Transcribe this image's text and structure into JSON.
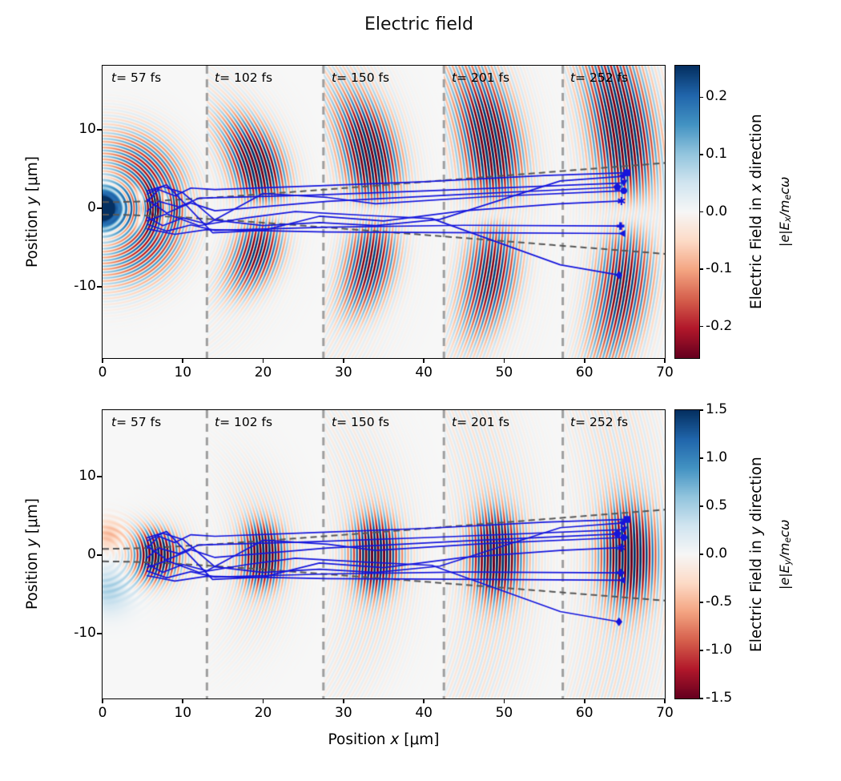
{
  "title": "Electric field",
  "colors": {
    "background": "#ffffff",
    "zero_field": "#f7f7f7",
    "trajectory_blue": "#1515dc",
    "cone_dash_gray": "#565656",
    "separator_gray": "#9e9e9e",
    "axis_black": "#000000"
  },
  "chart_data": {
    "type": "heatmap",
    "title": "Electric field",
    "x_axis": {
      "label_pre": "Position ",
      "label_var": "x",
      "label_post": " [μm]",
      "ticks": [
        0,
        10,
        20,
        30,
        40,
        50,
        60,
        70
      ],
      "lim": [
        0,
        70
      ]
    },
    "y_axis": {
      "label_pre": "Position ",
      "label_var": "y",
      "label_post": " [μm]",
      "ticks": [
        10,
        0,
        -10
      ],
      "top_lim": [
        -19.1,
        18.2
      ],
      "bottom_lim": [
        -16.8,
        18.5
      ]
    },
    "time_labels": [
      {
        "var": "t",
        "rest": "= 57 fs",
        "fs": 57
      },
      {
        "var": "t",
        "rest": "= 102 fs",
        "fs": 102
      },
      {
        "var": "t",
        "rest": "= 150 fs",
        "fs": 150
      },
      {
        "var": "t",
        "rest": "= 201 fs",
        "fs": 201
      },
      {
        "var": "t",
        "rest": "= 252 fs",
        "fs": 252
      }
    ],
    "panel_boundaries_x_um": [
      13.0,
      27.5,
      42.5,
      57.3
    ],
    "colormap_name": "RdBu",
    "colormap_stops": [
      "#67001f",
      "#b2182b",
      "#d6604d",
      "#f4a582",
      "#fddbc7",
      "#f7f7f7",
      "#d1e5f0",
      "#92c5de",
      "#4393c3",
      "#2166ac",
      "#053061"
    ],
    "subplots": [
      {
        "name": "Ex",
        "colorbar": {
          "label_pre": "Electric Field in ",
          "label_var": "x",
          "label_post": " direction",
          "formula": {
            "a": "|e|E",
            "a_sub": "x",
            "b": "/m",
            "b_sub": "e",
            "c": "cω"
          },
          "tick_labels": [
            "0.2",
            "0.1",
            "0.0",
            "-0.1",
            "-0.2"
          ],
          "tick_values": [
            0.2,
            0.1,
            0.0,
            -0.1,
            -0.2
          ],
          "vmin": -0.255,
          "vmax": 0.255
        }
      },
      {
        "name": "Ey",
        "colorbar": {
          "label_pre": "Electric Field in ",
          "label_var": "y",
          "label_post": " direction",
          "formula": {
            "a": "|e|E",
            "a_sub": "y",
            "b": "/m",
            "b_sub": "e",
            "c": "cω"
          },
          "tick_labels": [
            "1.5",
            "1.0",
            "0.5",
            "0.0",
            "-0.5",
            "-1.0",
            "-1.5"
          ],
          "tick_values": [
            1.5,
            1.0,
            0.5,
            0.0,
            -0.5,
            -1.0,
            -1.5
          ],
          "vmin": -1.5,
          "vmax": 1.5
        }
      }
    ],
    "cone": {
      "waist_um": 0.8,
      "divergence_rad": 0.082
    },
    "trajectories": [
      {
        "marker": "square",
        "points": [
          [
            5.5,
            0.8
          ],
          [
            7,
            2.4
          ],
          [
            9,
            1.6
          ],
          [
            11,
            2.6
          ],
          [
            14,
            2.4
          ],
          [
            27,
            2.9
          ],
          [
            40,
            3.4
          ],
          [
            55,
            4.2
          ],
          [
            65.3,
            4.55
          ]
        ]
      },
      {
        "marker": "star",
        "points": [
          [
            5.5,
            1.8
          ],
          [
            7.5,
            2.8
          ],
          [
            10,
            2.0
          ],
          [
            14,
            -1.5
          ],
          [
            20,
            -2.2
          ],
          [
            27,
            -1.8
          ],
          [
            34,
            -2.2
          ],
          [
            42,
            -1.4
          ],
          [
            57,
            3.5
          ],
          [
            64.8,
            4.1
          ]
        ]
      },
      {
        "marker": "triangle-down",
        "points": [
          [
            5.5,
            -0.4
          ],
          [
            7,
            0.9
          ],
          [
            9.5,
            0.2
          ],
          [
            12,
            1.3
          ],
          [
            26,
            1.7
          ],
          [
            42,
            2.3
          ],
          [
            64.9,
            3.25
          ]
        ]
      },
      {
        "marker": "pentagon",
        "points": [
          [
            5.5,
            1.2
          ],
          [
            8,
            -0.6
          ],
          [
            11,
            0.7
          ],
          [
            14,
            -0.3
          ],
          [
            28,
            0.9
          ],
          [
            45,
            1.8
          ],
          [
            64.1,
            2.7
          ]
        ]
      },
      {
        "marker": "circle",
        "points": [
          [
            5.5,
            -1.1
          ],
          [
            7.5,
            -2.2
          ],
          [
            10,
            -1.2
          ],
          [
            13,
            -2.0
          ],
          [
            20,
            1.9
          ],
          [
            28,
            1.4
          ],
          [
            34,
            0.6
          ],
          [
            48,
            1.5
          ],
          [
            64.9,
            2.25
          ]
        ]
      },
      {
        "marker": "asterisk",
        "points": [
          [
            5.5,
            2.2
          ],
          [
            8,
            3.0
          ],
          [
            13.7,
            -3.1
          ],
          [
            20,
            -2.8
          ],
          [
            27,
            -1.0
          ],
          [
            35,
            -1.6
          ],
          [
            45,
            -0.3
          ],
          [
            57,
            0.6
          ],
          [
            64.6,
            0.95
          ]
        ]
      },
      {
        "marker": "plus",
        "points": [
          [
            5.5,
            -2.0
          ],
          [
            8,
            -2.9
          ],
          [
            11,
            -2.1
          ],
          [
            14,
            -2.8
          ],
          [
            28,
            -2.4
          ],
          [
            45,
            -2.15
          ],
          [
            64.5,
            -2.25
          ]
        ]
      },
      {
        "marker": "triangle-left",
        "points": [
          [
            5.5,
            -2.6
          ],
          [
            9,
            -3.3
          ],
          [
            13,
            -2.7
          ],
          [
            28,
            -3.0
          ],
          [
            48,
            -3.1
          ],
          [
            64.7,
            -3.2
          ]
        ]
      },
      {
        "marker": "diamond",
        "points": [
          [
            5.5,
            -1.6
          ],
          [
            8,
            -0.7
          ],
          [
            12,
            -2.2
          ],
          [
            18,
            -1.2
          ],
          [
            24,
            -0.4
          ],
          [
            33,
            -0.9
          ],
          [
            41,
            -1.3
          ],
          [
            57,
            -7.2
          ],
          [
            64.3,
            -8.5
          ]
        ]
      }
    ],
    "render": {
      "wavelength_um": 0.75,
      "panel_rc": [
        6.8,
        20.0,
        34.0,
        49.0,
        65.5
      ],
      "panel_phase": [
        0.0,
        1.2,
        2.1,
        0.7,
        1.7
      ],
      "ex_lobe_sigma": [
        4.5,
        3.2,
        3.4,
        3.6,
        3.8
      ],
      "ex_arc_sigma": [
        5.0,
        4.5,
        5.0,
        5.5,
        6.0
      ],
      "ey_core_sigma": [
        2.6,
        2.6,
        2.9,
        3.1,
        3.3
      ],
      "ey_arc_sigma": [
        5.0,
        4.5,
        5.0,
        5.5,
        6.0
      ]
    }
  }
}
